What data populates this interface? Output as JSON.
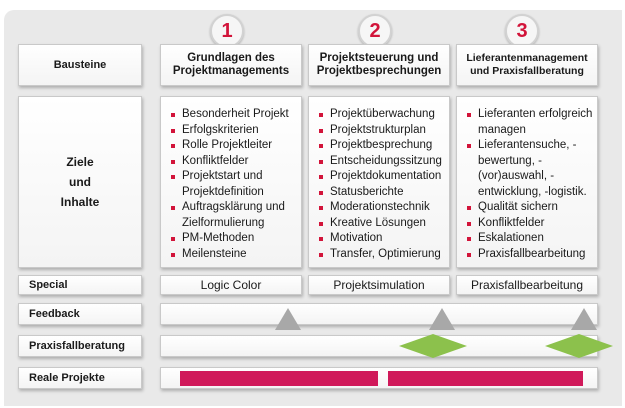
{
  "row_labels": {
    "bausteine": "Bausteine",
    "ziele_lines": [
      "Ziele",
      "und",
      "Inhalte"
    ],
    "special": "Special",
    "feedback": "Feedback",
    "praxisfall": "Praxisfallberatung",
    "reale": "Reale Projekte"
  },
  "columns": [
    {
      "number": "1",
      "heading_lines": [
        "Grundlagen des",
        "Projektmanagements"
      ],
      "items": [
        "Besonderheit Projekt",
        "Erfolgskriterien",
        "Rolle Projektleiter",
        "Konfliktfelder",
        "Projektstart und Projektdefinition",
        "Auftragsklärung und Zielformulierung",
        "PM-Methoden",
        "Meilensteine"
      ],
      "special": "Logic Color"
    },
    {
      "number": "2",
      "heading_lines": [
        "Projektsteuerung und",
        "Projektbesprechungen"
      ],
      "items": [
        "Projektüberwachung",
        "Projektstrukturplan",
        "Projektbesprechung",
        "Entscheidungssitzung",
        "Projektdokumentation",
        "Statusberichte",
        "Moderationstechnik",
        "Kreative Lösungen",
        "Motivation",
        "Transfer, Optimierung"
      ],
      "special": "Projektsimulation"
    },
    {
      "number": "3",
      "heading_lines": [
        "Lieferantenmanagement",
        "und Praxisfallberatung"
      ],
      "items": [
        "Lieferanten erfolgreich managen",
        "Lieferantensuche, -bewertung, -(vor)auswahl, -entwicklung, -logistik.",
        "Qualität sichern",
        "Konfliktfelder",
        "Eskalationen",
        "Praxisfallbearbeitung"
      ],
      "special": "Praxisfallbearbeitung"
    }
  ],
  "colors": {
    "accent": "#d2143a",
    "bar": "#d0195a",
    "triangle": "#a8a8a8",
    "diamond": "#8cc14c"
  }
}
